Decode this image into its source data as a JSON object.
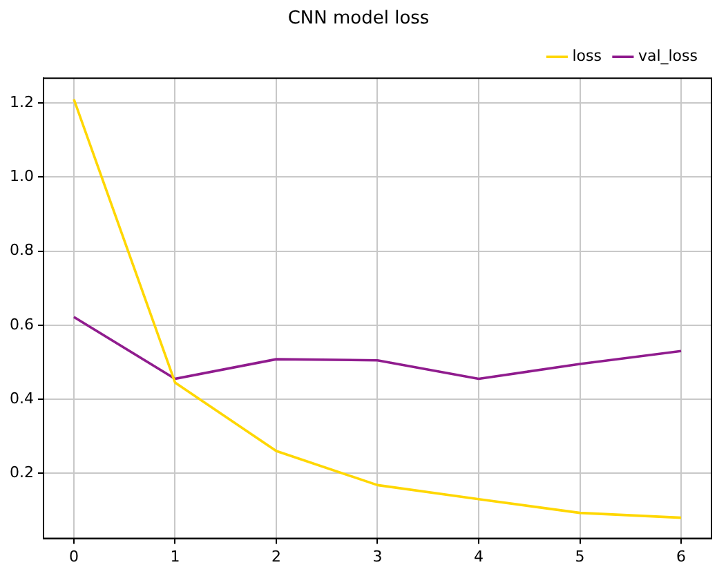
{
  "chart_data": {
    "type": "line",
    "title": "CNN model loss",
    "x": [
      0,
      1,
      2,
      3,
      4,
      5,
      6
    ],
    "series": [
      {
        "name": "loss",
        "color": "#ffd700",
        "values": [
          1.21,
          0.445,
          0.26,
          0.168,
          0.13,
          0.093,
          0.08
        ]
      },
      {
        "name": "val_loss",
        "color": "#901c8e",
        "values": [
          0.622,
          0.455,
          0.508,
          0.505,
          0.455,
          0.495,
          0.53
        ]
      }
    ],
    "xlim": [
      -0.3,
      6.3
    ],
    "xticks": [
      0,
      1,
      2,
      3,
      4,
      5,
      6
    ],
    "ylim": [
      0.024,
      1.267
    ],
    "yticks": [
      {
        "value": 0.2,
        "label": "0.2"
      },
      {
        "value": 0.4,
        "label": "0.4"
      },
      {
        "value": 0.6,
        "label": "0.6"
      },
      {
        "value": 0.8,
        "label": "0.8"
      },
      {
        "value": 1.0,
        "label": "1.0"
      },
      {
        "value": 1.2,
        "label": "1.2"
      }
    ],
    "grid": true,
    "legend": "top right",
    "marker": "none",
    "line_style": "solid"
  }
}
